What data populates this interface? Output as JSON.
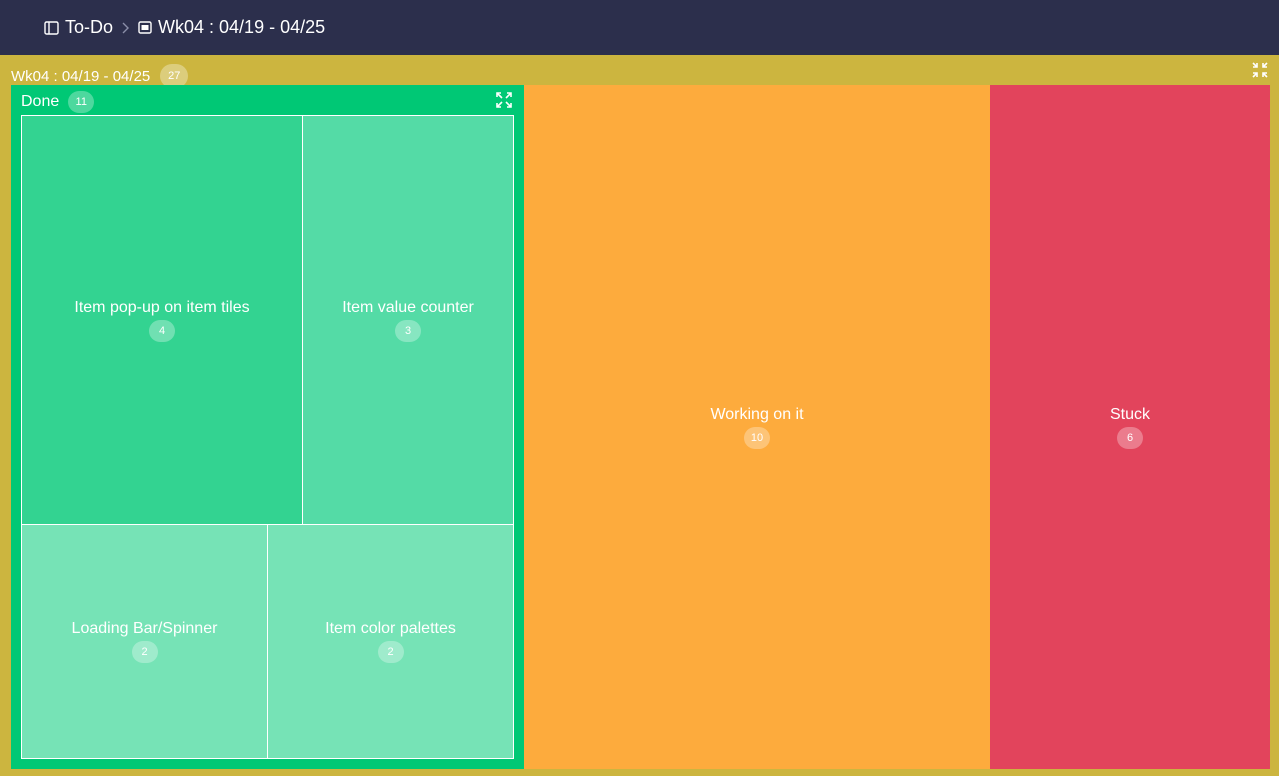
{
  "breadcrumb": {
    "root_label": "To-Do",
    "current_label": "Wk04 : 04/19 - 04/25"
  },
  "frame": {
    "title": "Wk04 : 04/19 - 04/25",
    "count": "27",
    "color": "#ccb53f",
    "collapse_icon": "collapse-icon"
  },
  "groups": {
    "done": {
      "label": "Done",
      "count": "11",
      "color": "#00c875",
      "expand_icon": "expand-icon",
      "items": [
        {
          "label": "Item pop-up on item tiles",
          "count": "4"
        },
        {
          "label": "Item value counter",
          "count": "3"
        },
        {
          "label": "Loading Bar/Spinner",
          "count": "2"
        },
        {
          "label": "Item color palettes",
          "count": "2"
        }
      ]
    },
    "working": {
      "label": "Working on it",
      "count": "10",
      "color": "#fdab3d"
    },
    "stuck": {
      "label": "Stuck",
      "count": "6",
      "color": "#e2445c"
    }
  },
  "colors": {
    "header_bg": "#2c2f4c",
    "done_item_dark": "#33d391",
    "done_item_mid": "#54dba6",
    "done_item_light": "#76e3b6"
  }
}
